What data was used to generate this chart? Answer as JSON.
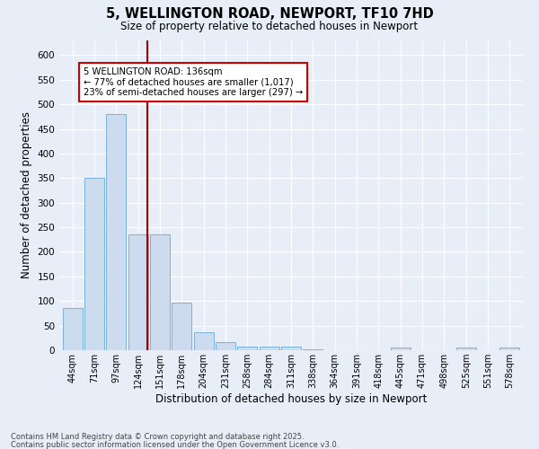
{
  "title_line1": "5, WELLINGTON ROAD, NEWPORT, TF10 7HD",
  "title_line2": "Size of property relative to detached houses in Newport",
  "xlabel": "Distribution of detached houses by size in Newport",
  "ylabel": "Number of detached properties",
  "categories": [
    "44sqm",
    "71sqm",
    "97sqm",
    "124sqm",
    "151sqm",
    "178sqm",
    "204sqm",
    "231sqm",
    "258sqm",
    "284sqm",
    "311sqm",
    "338sqm",
    "364sqm",
    "391sqm",
    "418sqm",
    "445sqm",
    "471sqm",
    "498sqm",
    "525sqm",
    "551sqm",
    "578sqm"
  ],
  "values": [
    86,
    350,
    480,
    235,
    235,
    97,
    37,
    16,
    7,
    7,
    7,
    2,
    0,
    0,
    0,
    5,
    0,
    0,
    5,
    0,
    5
  ],
  "bar_color": "#ccdcee",
  "bar_edge_color": "#6aaad4",
  "vline_color": "#aa0000",
  "annotation_text": "5 WELLINGTON ROAD: 136sqm\n← 77% of detached houses are smaller (1,017)\n23% of semi-detached houses are larger (297) →",
  "annotation_box_color": "#ffffff",
  "annotation_box_edge": "#cc0000",
  "ylim": [
    0,
    630
  ],
  "yticks": [
    0,
    50,
    100,
    150,
    200,
    250,
    300,
    350,
    400,
    450,
    500,
    550,
    600
  ],
  "background_color": "#e8eef8",
  "grid_color": "#ffffff",
  "footer_line1": "Contains HM Land Registry data © Crown copyright and database right 2025.",
  "footer_line2": "Contains public sector information licensed under the Open Government Licence v3.0."
}
